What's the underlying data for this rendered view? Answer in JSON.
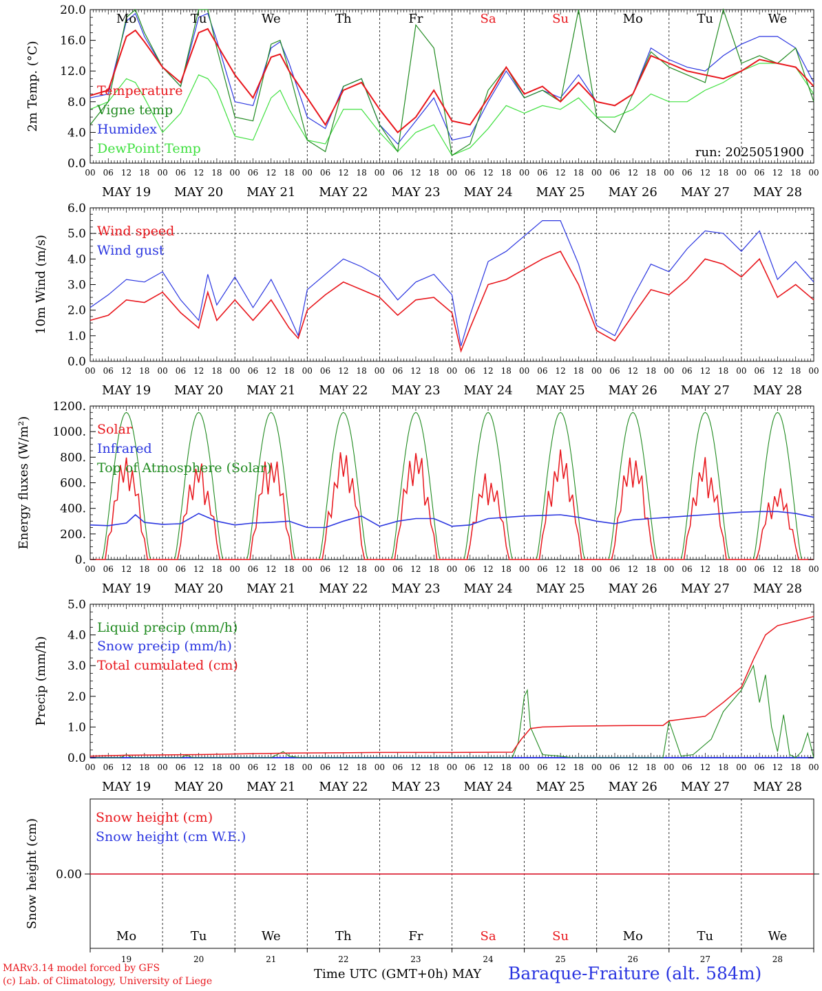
{
  "footer": {
    "model": "MARv3.14 model forced by GFS",
    "copyright": "(c) Lab. of Climatology, University of Liege",
    "xaxis_title": "Time UTC (GMT+0h)",
    "month": "MAY",
    "station": "Baraque-Fraiture (alt. 584m)"
  },
  "colors": {
    "red": "#e8151b",
    "green": "#1f8a1f",
    "blue": "#2a35e0",
    "lightgreen": "#3fe03f",
    "black": "#000000"
  },
  "day_labels": [
    {
      "name": "Mo",
      "color": "#000000"
    },
    {
      "name": "Tu",
      "color": "#000000"
    },
    {
      "name": "We",
      "color": "#000000"
    },
    {
      "name": "Th",
      "color": "#000000"
    },
    {
      "name": "Fr",
      "color": "#000000"
    },
    {
      "name": "Sa",
      "color": "#e8151b"
    },
    {
      "name": "Su",
      "color": "#e8151b"
    },
    {
      "name": "Mo",
      "color": "#000000"
    },
    {
      "name": "Tu",
      "color": "#000000"
    },
    {
      "name": "We",
      "color": "#000000"
    }
  ],
  "date_labels": [
    "MAY 19",
    "MAY 20",
    "MAY 21",
    "MAY 22",
    "MAY 23",
    "MAY 24",
    "MAY 25",
    "MAY 26",
    "MAY 27",
    "MAY 28"
  ],
  "day_numbers": [
    "19",
    "20",
    "21",
    "22",
    "23",
    "24",
    "25",
    "26",
    "27",
    "28"
  ],
  "hour_ticks": [
    "00",
    "06",
    "12",
    "18"
  ],
  "chart_data": [
    {
      "type": "line",
      "ylabel": "2m Temp. (°C)",
      "ylim": [
        0,
        20
      ],
      "yticks": [
        "0.0",
        "4.0",
        "8.0",
        "12.0",
        "16.0",
        "20.0"
      ],
      "annotation": "run: 2025051900",
      "x_unit": "hours since 2025-05-19 00 UTC",
      "series": [
        {
          "name": "Temperature",
          "color": "#e8151b",
          "x": [
            0,
            6,
            12,
            15,
            18,
            24,
            30,
            36,
            39,
            42,
            48,
            54,
            60,
            63,
            66,
            72,
            78,
            84,
            90,
            96,
            102,
            108,
            114,
            120,
            126,
            132,
            138,
            144,
            150,
            156,
            162,
            168,
            174,
            180,
            186,
            192,
            198,
            204,
            210,
            216,
            222,
            228,
            234,
            240
          ],
          "y": [
            8.8,
            9.5,
            16.5,
            17.3,
            15.8,
            12.5,
            10.5,
            17.0,
            17.5,
            15.5,
            11.5,
            8.5,
            13.8,
            14.2,
            12.0,
            8.5,
            5.0,
            9.5,
            10.5,
            7.0,
            4.0,
            6.0,
            9.5,
            5.5,
            5.0,
            8.5,
            12.5,
            9.0,
            10.0,
            8.0,
            10.5,
            8.0,
            7.5,
            9.0,
            14.0,
            13.0,
            12.0,
            11.5,
            11.0,
            12.0,
            13.5,
            13.0,
            12.5,
            10.0
          ]
        },
        {
          "name": "Vigne temp",
          "color": "#1f8a1f",
          "x": [
            0,
            6,
            12,
            15,
            18,
            24,
            30,
            36,
            39,
            42,
            48,
            54,
            60,
            63,
            66,
            72,
            78,
            84,
            90,
            96,
            102,
            108,
            114,
            120,
            126,
            132,
            138,
            144,
            150,
            156,
            162,
            168,
            174,
            180,
            186,
            192,
            198,
            204,
            210,
            216,
            222,
            228,
            234,
            240
          ],
          "y": [
            5.0,
            8.0,
            19.0,
            20.0,
            17.0,
            12.5,
            10.0,
            20.0,
            20.0,
            15.0,
            6.0,
            5.5,
            15.5,
            16.0,
            12.0,
            3.0,
            1.5,
            10.0,
            11.0,
            5.0,
            1.5,
            18.0,
            15.0,
            1.0,
            2.5,
            9.5,
            12.5,
            8.5,
            9.5,
            8.0,
            20.0,
            6.0,
            4.0,
            9.0,
            14.5,
            12.5,
            11.5,
            10.5,
            20.0,
            13.0,
            14.0,
            13.0,
            15.0,
            8.0
          ]
        },
        {
          "name": "Humidex",
          "color": "#2a35e0",
          "x": [
            0,
            6,
            12,
            15,
            18,
            24,
            30,
            36,
            39,
            42,
            48,
            54,
            60,
            63,
            66,
            72,
            78,
            84,
            90,
            96,
            102,
            108,
            114,
            120,
            126,
            132,
            138,
            144,
            150,
            156,
            162,
            168,
            174,
            180,
            186,
            192,
            198,
            204,
            210,
            216,
            222,
            228,
            234,
            240
          ],
          "y": [
            8.5,
            9.0,
            18.5,
            19.5,
            16.5,
            12.5,
            10.0,
            19.0,
            19.5,
            16.0,
            8.0,
            7.5,
            15.0,
            15.8,
            13.0,
            6.0,
            4.5,
            10.0,
            11.0,
            5.0,
            2.5,
            5.5,
            8.5,
            3.0,
            3.5,
            8.0,
            12.0,
            8.5,
            9.5,
            8.5,
            11.5,
            8.0,
            7.5,
            9.0,
            15.0,
            13.5,
            12.5,
            12.0,
            14.0,
            15.5,
            16.5,
            16.5,
            15.0,
            10.5
          ]
        },
        {
          "name": "DewPoint Temp",
          "color": "#3fe03f",
          "x": [
            0,
            6,
            12,
            15,
            18,
            24,
            30,
            36,
            39,
            42,
            48,
            54,
            60,
            63,
            66,
            72,
            78,
            84,
            90,
            96,
            102,
            108,
            114,
            120,
            126,
            132,
            138,
            144,
            150,
            156,
            162,
            168,
            174,
            180,
            186,
            192,
            198,
            204,
            210,
            216,
            222,
            228,
            234,
            240
          ],
          "y": [
            7.0,
            8.0,
            11.0,
            10.5,
            8.5,
            4.0,
            6.5,
            11.5,
            11.0,
            9.5,
            3.5,
            3.0,
            8.5,
            9.5,
            7.0,
            3.0,
            2.5,
            7.0,
            7.0,
            4.0,
            1.5,
            4.0,
            5.0,
            1.0,
            2.0,
            4.5,
            7.5,
            6.5,
            7.5,
            7.0,
            8.5,
            6.0,
            6.0,
            7.0,
            9.0,
            8.0,
            8.0,
            9.5,
            10.5,
            12.0,
            13.0,
            13.0,
            12.5,
            9.0
          ]
        }
      ]
    },
    {
      "type": "line",
      "ylabel": "10m Wind (m/s)",
      "ylim": [
        0,
        6
      ],
      "yticks": [
        "0.0",
        "1.0",
        "2.0",
        "3.0",
        "4.0",
        "5.0",
        "6.0"
      ],
      "x_unit": "hours since 2025-05-19 00 UTC",
      "series": [
        {
          "name": "Wind speed",
          "color": "#e8151b",
          "x": [
            0,
            6,
            12,
            18,
            24,
            30,
            36,
            39,
            42,
            48,
            54,
            60,
            66,
            69,
            72,
            78,
            84,
            90,
            96,
            102,
            108,
            114,
            120,
            123,
            126,
            132,
            138,
            144,
            150,
            156,
            162,
            168,
            174,
            180,
            186,
            192,
            198,
            204,
            210,
            216,
            222,
            228,
            234,
            240
          ],
          "y": [
            1.6,
            1.8,
            2.4,
            2.3,
            2.7,
            1.9,
            1.3,
            2.7,
            1.6,
            2.4,
            1.6,
            2.4,
            1.3,
            0.9,
            2.0,
            2.6,
            3.1,
            2.8,
            2.5,
            1.8,
            2.4,
            2.5,
            1.9,
            0.4,
            1.3,
            3.0,
            3.2,
            3.6,
            4.0,
            4.3,
            3.0,
            1.2,
            0.8,
            1.8,
            2.8,
            2.6,
            3.2,
            4.0,
            3.8,
            3.3,
            4.0,
            2.5,
            3.0,
            2.4
          ]
        },
        {
          "name": "Wind gust",
          "color": "#2a35e0",
          "x": [
            0,
            6,
            12,
            18,
            24,
            30,
            36,
            39,
            42,
            48,
            54,
            60,
            66,
            69,
            72,
            78,
            84,
            90,
            96,
            102,
            108,
            114,
            120,
            123,
            126,
            132,
            138,
            144,
            150,
            156,
            162,
            168,
            174,
            180,
            186,
            192,
            198,
            204,
            210,
            216,
            222,
            228,
            234,
            240
          ],
          "y": [
            2.1,
            2.6,
            3.2,
            3.1,
            3.5,
            2.4,
            1.6,
            3.4,
            2.2,
            3.3,
            2.1,
            3.2,
            1.8,
            1.0,
            2.8,
            3.4,
            4.0,
            3.7,
            3.3,
            2.4,
            3.1,
            3.4,
            2.6,
            0.6,
            1.8,
            3.9,
            4.3,
            4.9,
            5.5,
            5.5,
            3.8,
            1.4,
            1.0,
            2.5,
            3.8,
            3.5,
            4.4,
            5.1,
            5.0,
            4.3,
            5.1,
            3.2,
            3.9,
            3.1
          ]
        }
      ]
    },
    {
      "type": "line",
      "ylabel": "Energy fluxes (W/m²)",
      "ylim": [
        0,
        1200
      ],
      "yticks": [
        "0.",
        "200.",
        "400.",
        "600.",
        "800.",
        "1000.",
        "1200."
      ],
      "x_unit": "hours since 2025-05-19 00 UTC",
      "solar_peaks": [
        820,
        770,
        850,
        860,
        880,
        690,
        860,
        840,
        800,
        570
      ],
      "toa_peak": 1150,
      "infrared": {
        "name": "Infrared",
        "color": "#2a35e0",
        "x": [
          0,
          6,
          12,
          15,
          18,
          24,
          30,
          36,
          42,
          48,
          54,
          60,
          66,
          72,
          78,
          84,
          90,
          96,
          102,
          108,
          114,
          120,
          126,
          132,
          138,
          144,
          150,
          156,
          162,
          168,
          174,
          180,
          186,
          192,
          198,
          204,
          210,
          216,
          222,
          228,
          234,
          240
        ],
        "y": [
          270,
          265,
          285,
          350,
          290,
          275,
          280,
          360,
          300,
          270,
          285,
          290,
          300,
          250,
          250,
          300,
          340,
          260,
          300,
          320,
          320,
          260,
          270,
          320,
          330,
          340,
          345,
          350,
          330,
          300,
          280,
          310,
          320,
          330,
          340,
          350,
          360,
          370,
          375,
          375,
          360,
          330
        ]
      },
      "series": [
        {
          "name": "Solar",
          "color": "#e8151b"
        },
        {
          "name": "Infrared",
          "color": "#2a35e0"
        },
        {
          "name": "Top of Atmosphere (Solar)",
          "color": "#1f8a1f"
        }
      ]
    },
    {
      "type": "line",
      "ylabel": "Precip (mm/h)",
      "ylim": [
        0,
        5
      ],
      "yticks": [
        "0.0",
        "1.0",
        "2.0",
        "3.0",
        "4.0",
        "5.0"
      ],
      "x_unit": "hours since 2025-05-19 00 UTC",
      "series": [
        {
          "name": "Liquid precip (mm/h)",
          "color": "#1f8a1f",
          "x": [
            0,
            10,
            12,
            14,
            30,
            32,
            34,
            60,
            64,
            66,
            70,
            140,
            142,
            144,
            145,
            146,
            150,
            156,
            160,
            190,
            192,
            196,
            200,
            206,
            210,
            216,
            220,
            222,
            224,
            226,
            228,
            230,
            232,
            234,
            236,
            238,
            240
          ],
          "y": [
            0,
            0,
            0.1,
            0,
            0,
            0.08,
            0,
            0,
            0.2,
            0.05,
            0,
            0,
            0.5,
            2.0,
            2.2,
            1.0,
            0.1,
            0.05,
            0,
            0,
            1.2,
            0.05,
            0.1,
            0.6,
            1.5,
            2.2,
            3.0,
            1.8,
            2.7,
            1.0,
            0.2,
            1.4,
            0.1,
            0,
            0.2,
            0.8,
            0
          ]
        },
        {
          "name": "Snow precip (mm/h)",
          "color": "#2a35e0",
          "x": [
            0,
            240
          ],
          "y": [
            0,
            0
          ]
        },
        {
          "name": "Total cumulated (cm)",
          "color": "#e8151b",
          "x": [
            0,
            12,
            36,
            66,
            96,
            120,
            140,
            143,
            146,
            150,
            160,
            180,
            190,
            192,
            200,
            204,
            210,
            216,
            220,
            224,
            228,
            234,
            240
          ],
          "y": [
            0.05,
            0.08,
            0.1,
            0.15,
            0.17,
            0.17,
            0.18,
            0.6,
            0.95,
            1.0,
            1.03,
            1.05,
            1.05,
            1.2,
            1.3,
            1.35,
            1.8,
            2.3,
            3.2,
            4.0,
            4.3,
            4.45,
            4.6
          ]
        }
      ]
    },
    {
      "type": "line",
      "ylabel": "Snow height (cm)",
      "yticks": [
        "0.00"
      ],
      "x_unit": "hours since 2025-05-19 00 UTC",
      "series": [
        {
          "name": "Snow height (cm)",
          "color": "#e8151b",
          "x": [
            0,
            240
          ],
          "y": [
            0,
            0
          ]
        },
        {
          "name": "Snow height (cm W.E.)",
          "color": "#2a35e0",
          "x": [
            0,
            240
          ],
          "y": [
            0,
            0
          ]
        }
      ]
    }
  ]
}
